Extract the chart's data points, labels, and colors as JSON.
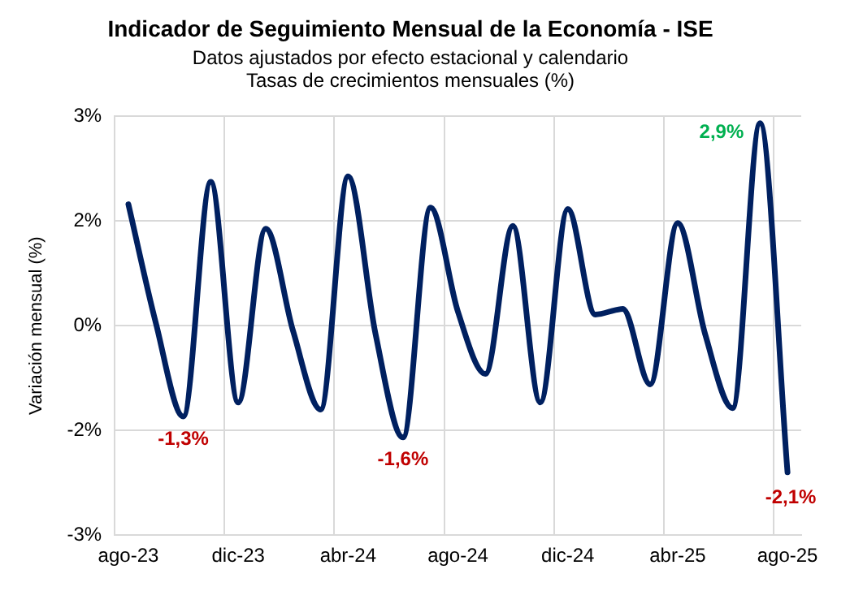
{
  "chart_data": {
    "type": "line",
    "title": "Indicador de Seguimiento Mensual de la Economía - ISE",
    "subtitle": "Datos ajustados por efecto estacional y calendario\nTasas de crecimientos mensuales (%)",
    "ylabel": "Variación mensual (%)",
    "categories": [
      "ago-23",
      null,
      null,
      null,
      "dic-23",
      null,
      null,
      null,
      "abr-24",
      null,
      null,
      null,
      "ago-24",
      null,
      null,
      null,
      "dic-24",
      null,
      null,
      null,
      "abr-25",
      null,
      null,
      null,
      "ago-25"
    ],
    "series": [
      {
        "color": "#002060",
        "values": [
          1.74,
          0.04,
          -1.3,
          2.06,
          -1.1,
          1.39,
          -0.08,
          -1.2,
          2.14,
          -0.12,
          -1.6,
          1.69,
          0.2,
          -0.69,
          1.43,
          -1.1,
          1.67,
          0.16,
          0.24,
          -0.84,
          1.47,
          -0.12,
          -1.18,
          2.9,
          -2.1
        ],
        "value_labels": [
          null,
          null,
          "-1,3%",
          null,
          null,
          null,
          null,
          null,
          null,
          null,
          "-1,6%",
          null,
          null,
          null,
          null,
          null,
          null,
          null,
          null,
          null,
          null,
          null,
          null,
          "2,9%",
          "-2,1%"
        ]
      }
    ],
    "ylim": [
      -3,
      3
    ],
    "yticks": [
      {
        "value": 3,
        "label": "3%"
      },
      {
        "value": 1.5,
        "label": "2%"
      },
      {
        "value": 0,
        "label": "0%"
      },
      {
        "value": -1.5,
        "label": "-2%"
      },
      {
        "value": -3,
        "label": "-3%"
      }
    ],
    "grid": true,
    "legend": false,
    "marker": "none",
    "line_style": "solid"
  }
}
